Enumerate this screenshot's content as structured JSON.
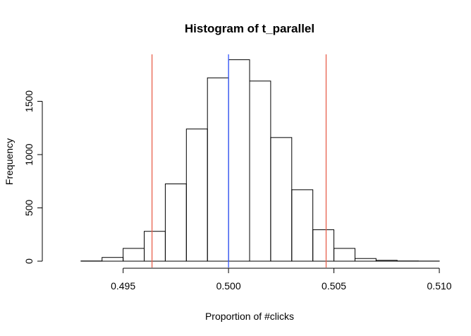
{
  "chart_data": {
    "type": "histogram",
    "title": "Histogram of t_parallel",
    "xlabel": "Proportion of #clicks",
    "ylabel": "Frequency",
    "bin_width": 0.001,
    "bins": [
      {
        "x0": 0.492,
        "x1": 0.493,
        "count": 0
      },
      {
        "x0": 0.493,
        "x1": 0.494,
        "count": 2
      },
      {
        "x0": 0.494,
        "x1": 0.495,
        "count": 35
      },
      {
        "x0": 0.495,
        "x1": 0.496,
        "count": 120
      },
      {
        "x0": 0.496,
        "x1": 0.497,
        "count": 280
      },
      {
        "x0": 0.497,
        "x1": 0.498,
        "count": 725
      },
      {
        "x0": 0.498,
        "x1": 0.499,
        "count": 1240
      },
      {
        "x0": 0.499,
        "x1": 0.5,
        "count": 1720
      },
      {
        "x0": 0.5,
        "x1": 0.501,
        "count": 1890
      },
      {
        "x0": 0.501,
        "x1": 0.502,
        "count": 1690
      },
      {
        "x0": 0.502,
        "x1": 0.503,
        "count": 1160
      },
      {
        "x0": 0.503,
        "x1": 0.504,
        "count": 670
      },
      {
        "x0": 0.504,
        "x1": 0.505,
        "count": 295
      },
      {
        "x0": 0.505,
        "x1": 0.506,
        "count": 120
      },
      {
        "x0": 0.506,
        "x1": 0.507,
        "count": 25
      },
      {
        "x0": 0.507,
        "x1": 0.508,
        "count": 8
      },
      {
        "x0": 0.508,
        "x1": 0.509,
        "count": 2
      },
      {
        "x0": 0.509,
        "x1": 0.51,
        "count": 1
      }
    ],
    "x_ticks": [
      {
        "value": 0.495,
        "label": "0.495"
      },
      {
        "value": 0.5,
        "label": "0.500"
      },
      {
        "value": 0.505,
        "label": "0.505"
      },
      {
        "value": 0.51,
        "label": "0.510"
      }
    ],
    "y_ticks": [
      {
        "value": 0,
        "label": "0"
      },
      {
        "value": 500,
        "label": "500"
      },
      {
        "value": 1000,
        "label": "1000"
      },
      {
        "value": 1500,
        "label": "1500"
      }
    ],
    "xlim": [
      0.4915,
      0.5105
    ],
    "ylim": [
      0,
      2000
    ],
    "reference_lines": [
      {
        "x": 0.49637,
        "color": "#e8604c"
      },
      {
        "x": 0.5,
        "color": "#3355ff"
      },
      {
        "x": 0.50463,
        "color": "#e8604c"
      }
    ],
    "grid": false,
    "legend": "none"
  }
}
